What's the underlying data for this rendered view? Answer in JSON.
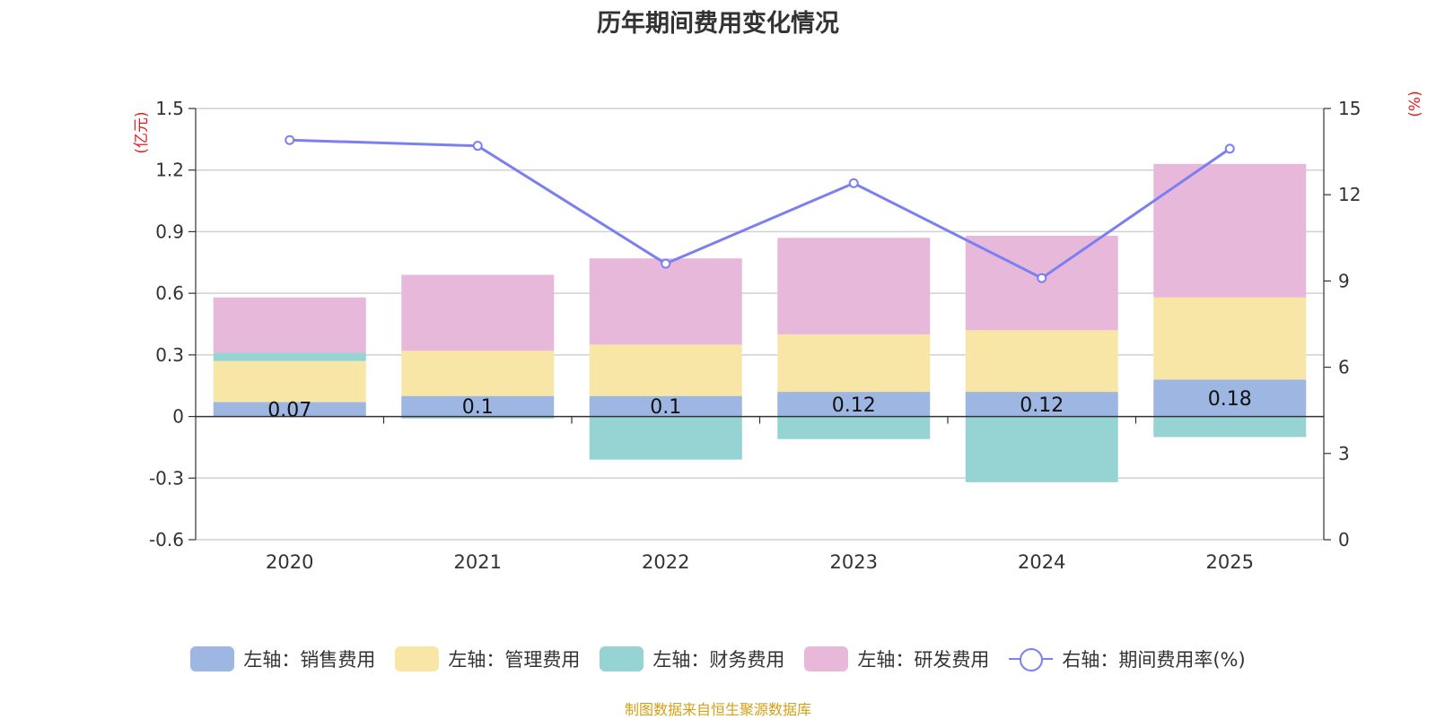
{
  "chart_data": {
    "type": "bar",
    "title": "历年期间费用变化情况",
    "categories": [
      "2020",
      "2021",
      "2022",
      "2023",
      "2024",
      "2025"
    ],
    "left_axis": {
      "unit_label": "(亿元)",
      "ylim": [
        -0.6,
        1.5
      ],
      "ticks": [
        -0.6,
        -0.3,
        0,
        0.3,
        0.6,
        0.9,
        1.2,
        1.5
      ]
    },
    "right_axis": {
      "unit_label": "(%)",
      "ylim": [
        0,
        15
      ],
      "ticks": [
        0,
        3,
        6,
        9,
        12,
        15
      ]
    },
    "series": [
      {
        "name": "左轴：销售费用",
        "type": "bar",
        "axis": "left",
        "color": "#9db6e2",
        "values": [
          0.07,
          0.1,
          0.1,
          0.12,
          0.12,
          0.18
        ],
        "labels": [
          "0.07",
          "0.1",
          "0.1",
          "0.12",
          "0.12",
          "0.18"
        ]
      },
      {
        "name": "左轴：管理费用",
        "type": "bar",
        "axis": "left",
        "color": "#f8e6a6",
        "values": [
          0.2,
          0.22,
          0.25,
          0.28,
          0.3,
          0.4
        ]
      },
      {
        "name": "左轴：财务费用",
        "type": "bar",
        "axis": "left",
        "color": "#96d4d4",
        "values": [
          0.04,
          -0.01,
          -0.21,
          -0.11,
          -0.32,
          -0.1
        ]
      },
      {
        "name": "左轴：研发费用",
        "type": "bar",
        "axis": "left",
        "color": "#e8b8da",
        "values": [
          0.27,
          0.37,
          0.42,
          0.47,
          0.46,
          0.65
        ]
      },
      {
        "name": "右轴：期间费用率(%)",
        "type": "line",
        "axis": "right",
        "color": "#7b7ff0",
        "values": [
          13.9,
          13.7,
          9.6,
          12.4,
          9.1,
          13.6
        ]
      }
    ]
  },
  "source_text": "制图数据来自恒生聚源数据库"
}
